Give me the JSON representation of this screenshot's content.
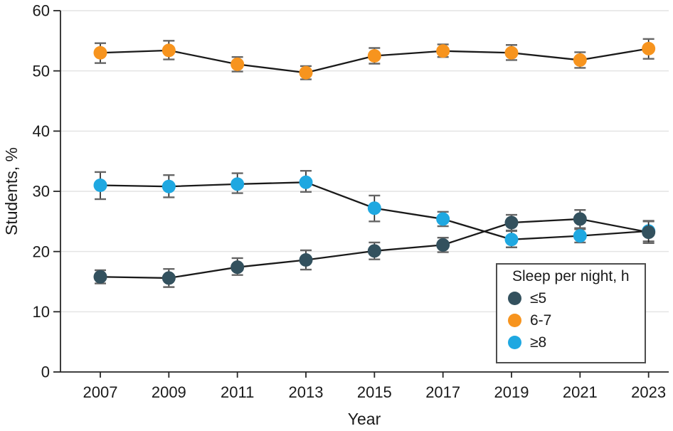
{
  "chart_data": {
    "type": "line",
    "title": "",
    "xlabel": "Year",
    "ylabel": "Students, %",
    "x": [
      2007,
      2009,
      2011,
      2013,
      2015,
      2017,
      2019,
      2021,
      2023
    ],
    "ylim": [
      0,
      60
    ],
    "yticks": [
      0,
      10,
      20,
      30,
      40,
      50,
      60
    ],
    "grid": true,
    "error_bars": true,
    "legend_title": "Sleep per night, h",
    "legend_position": "bottom-right",
    "series": [
      {
        "name": "≤5",
        "color": "#33515E",
        "values": [
          15.8,
          15.6,
          17.4,
          18.6,
          20.1,
          21.1,
          24.8,
          25.4,
          23.2
        ],
        "ci_low": [
          14.7,
          14.1,
          16.1,
          17.0,
          18.7,
          19.9,
          23.5,
          23.9,
          21.4
        ],
        "ci_high": [
          16.9,
          17.1,
          18.9,
          20.2,
          21.5,
          22.3,
          26.1,
          26.9,
          25.0
        ]
      },
      {
        "name": "6-7",
        "color": "#F7941E",
        "values": [
          53.0,
          53.4,
          51.1,
          49.7,
          52.5,
          53.3,
          53.0,
          51.8,
          53.7
        ],
        "ci_low": [
          51.3,
          51.9,
          49.9,
          48.6,
          51.2,
          52.3,
          51.8,
          50.5,
          52.0
        ],
        "ci_high": [
          54.6,
          55.0,
          52.3,
          50.8,
          53.8,
          54.4,
          54.3,
          53.1,
          55.3
        ]
      },
      {
        "name": "≥8",
        "color": "#1FA8E1",
        "values": [
          31.0,
          30.8,
          31.2,
          31.5,
          27.2,
          25.4,
          22.0,
          22.6,
          23.4
        ],
        "ci_low": [
          28.7,
          29.0,
          29.7,
          29.9,
          25.0,
          24.2,
          20.7,
          21.5,
          21.7
        ],
        "ci_high": [
          33.2,
          32.7,
          33.0,
          33.4,
          29.3,
          26.6,
          23.4,
          23.7,
          25.1
        ]
      }
    ],
    "style": {
      "line_color": "#1a1a1a",
      "grid_color": "#e4e4e4",
      "axis_color": "#262626",
      "errorbar_color": "#262626",
      "errorbar_cap_color": "#666666"
    }
  }
}
